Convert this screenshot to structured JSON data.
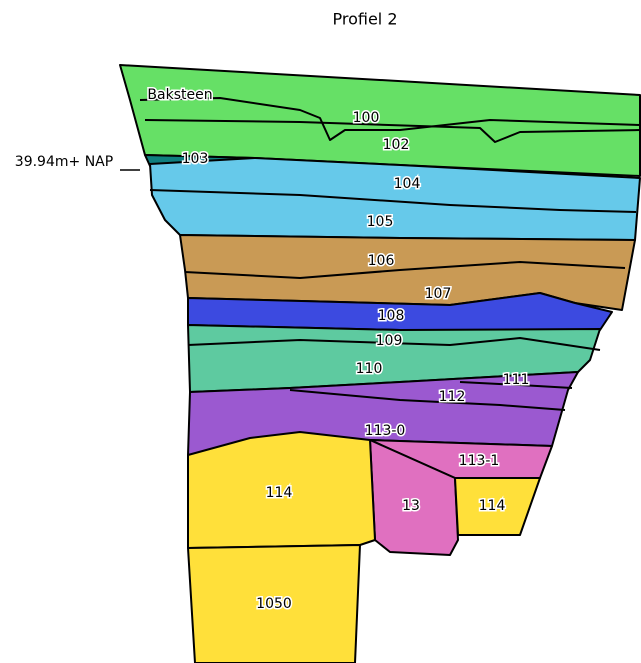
{
  "title": "Profiel 2",
  "reference_label": "39.94m+ NAP",
  "layers": [
    "Baksteen",
    "100",
    "102",
    "103",
    "104",
    "105",
    "106",
    "107",
    "108",
    "109",
    "110",
    "111",
    "112",
    "113-0",
    "113-1",
    "114",
    "13",
    "114",
    "1050"
  ]
}
